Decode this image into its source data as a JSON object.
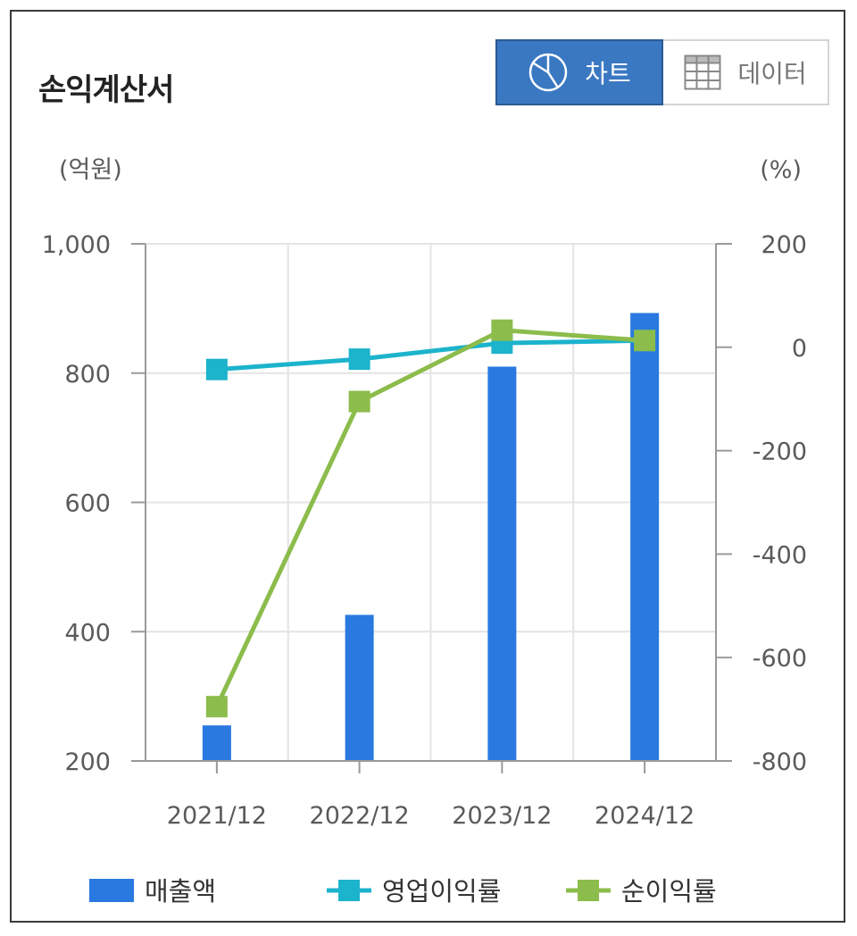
{
  "header": {
    "title": "손익계산서"
  },
  "toggle": {
    "chart_label": "차트",
    "data_label": "데이터"
  },
  "chart_data": {
    "type": "bar",
    "categories": [
      "2021/12",
      "2022/12",
      "2023/12",
      "2024/12"
    ],
    "left_axis": {
      "unit": "(억원)",
      "range": [
        200,
        1000
      ],
      "ticks": [
        "1,000",
        "800",
        "600",
        "400",
        "200"
      ],
      "tick_values": [
        1000,
        800,
        600,
        400,
        200
      ]
    },
    "right_axis": {
      "unit": "(%)",
      "range": [
        -800,
        200
      ],
      "ticks": [
        "200",
        "0",
        "-200",
        "-400",
        "-600",
        "-800"
      ],
      "tick_values": [
        200,
        0,
        -200,
        -400,
        -600,
        -800
      ]
    },
    "series": [
      {
        "name": "매출액",
        "type": "bar",
        "axis": "left",
        "color": "#2a79e0",
        "values": [
          255,
          426,
          810,
          893
        ]
      },
      {
        "name": "영업이익률",
        "type": "line",
        "axis": "right",
        "color": "#1cb3cc",
        "values": [
          -43,
          -23,
          8,
          13
        ]
      },
      {
        "name": "순이익률",
        "type": "line",
        "axis": "right",
        "color": "#8cbc4c",
        "values": [
          -695,
          -105,
          33,
          13
        ]
      }
    ],
    "grid": true,
    "legend_position": "bottom"
  }
}
